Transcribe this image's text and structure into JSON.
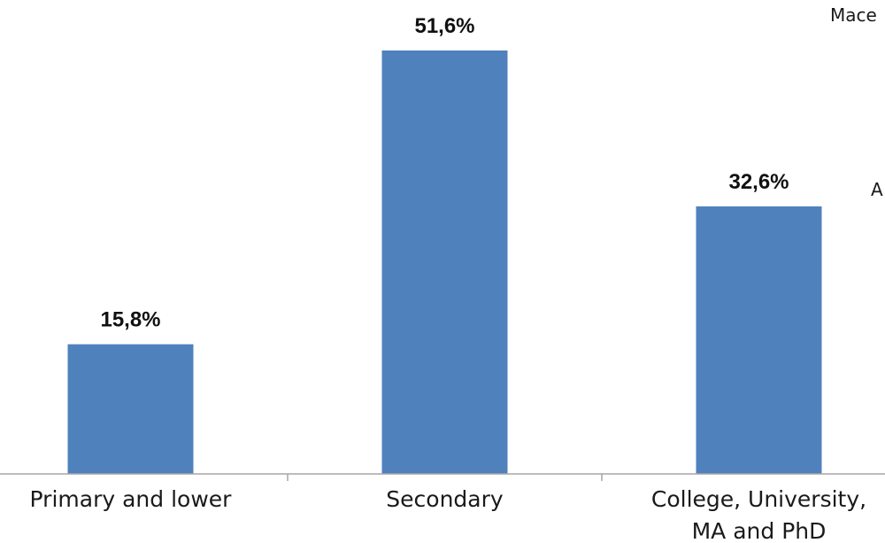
{
  "chart_data": {
    "type": "bar",
    "categories": [
      [
        "Primary and lower"
      ],
      [
        "Secondary"
      ],
      [
        "College, University,",
        "MA and PhD"
      ]
    ],
    "values": [
      15.8,
      51.6,
      32.6
    ],
    "value_labels": [
      "15,8%",
      "51,6%",
      "32,6%"
    ],
    "ylim": [
      0,
      51.6
    ],
    "title": "",
    "xlabel": "",
    "ylabel": "",
    "grid": false,
    "bar_color": "#4f81bd",
    "axis_color": "#a6a6a6"
  },
  "side_text": {
    "top_right": "Mace",
    "middle_right": "A"
  }
}
